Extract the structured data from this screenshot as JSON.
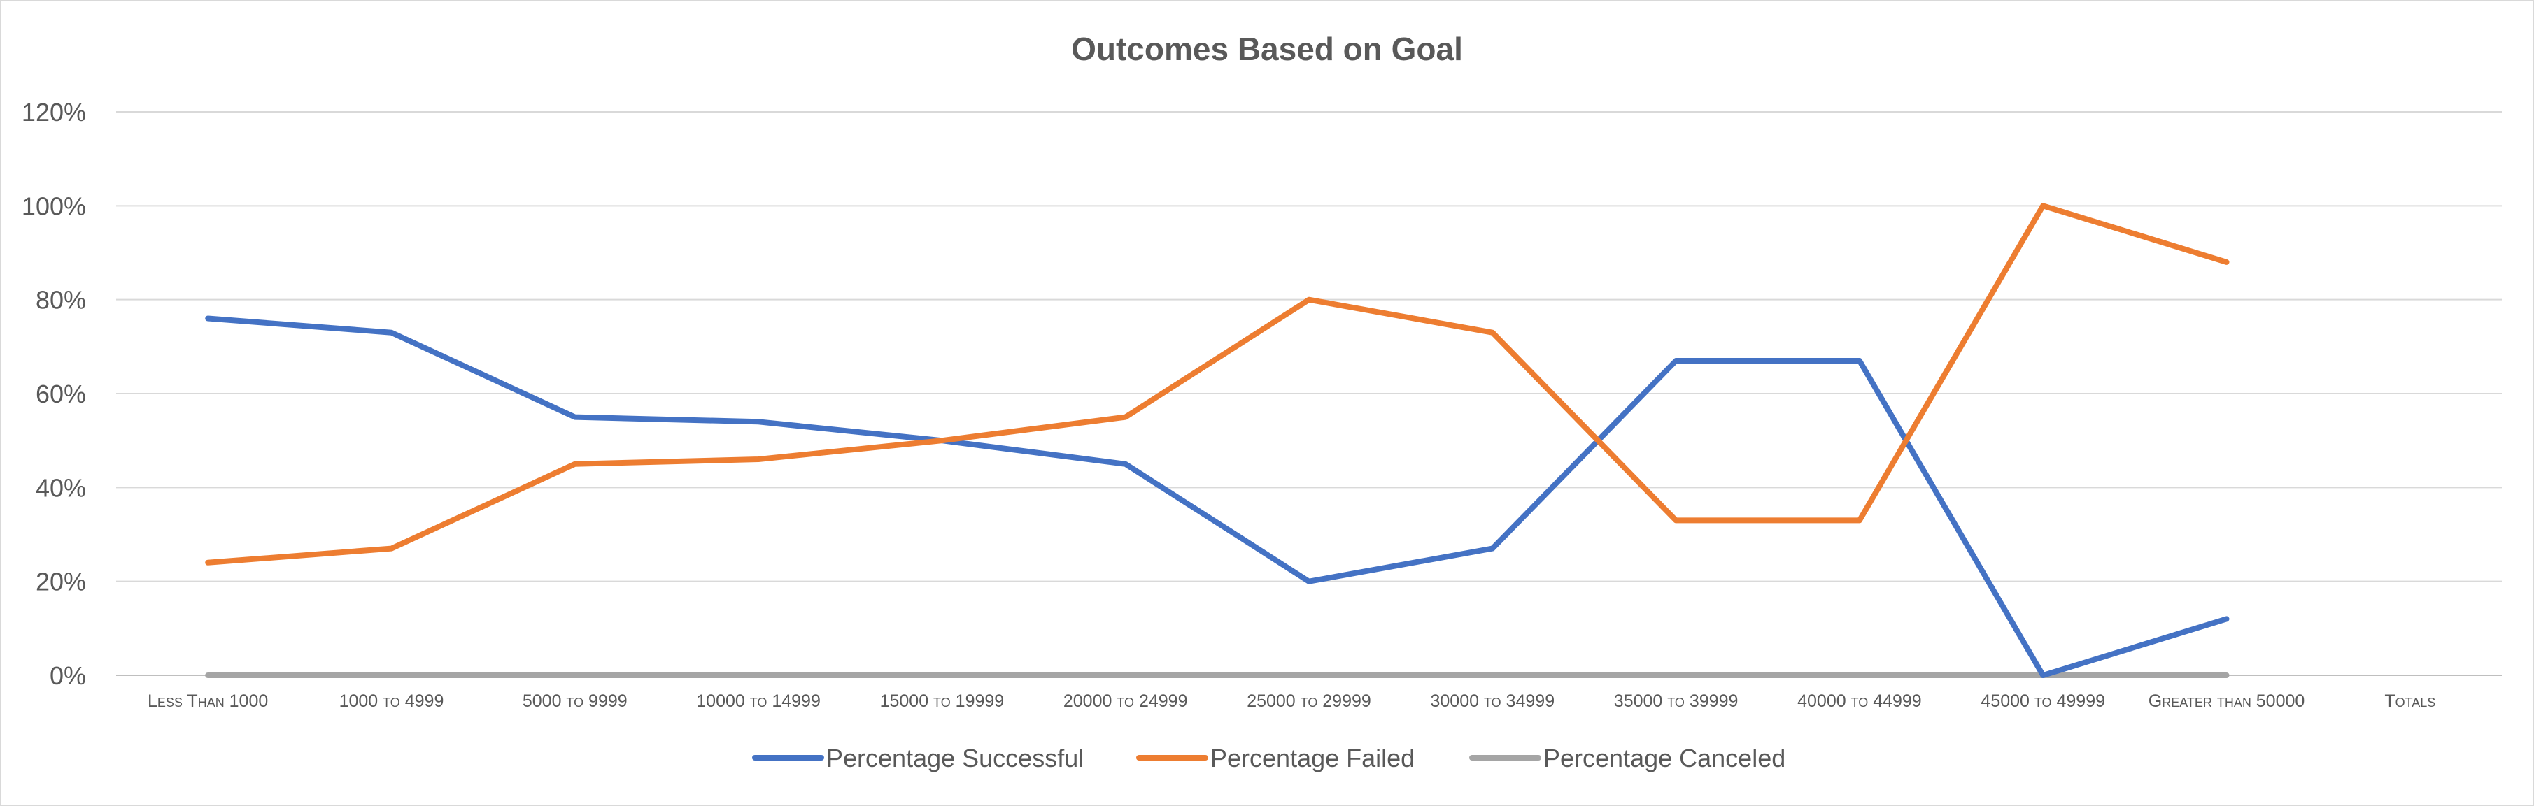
{
  "chart_data": {
    "type": "line",
    "title": "Outcomes Based on Goal",
    "xlabel": "",
    "ylabel": "",
    "ylim": [
      0,
      120
    ],
    "yticks": [
      "0%",
      "20%",
      "40%",
      "60%",
      "80%",
      "100%",
      "120%"
    ],
    "ytick_values": [
      0,
      20,
      40,
      60,
      80,
      100,
      120
    ],
    "grid": true,
    "legend_position": "bottom",
    "categories": [
      "Less Than 1000",
      "1000 to 4999",
      "5000 to 9999",
      "10000 to 14999",
      "15000 to 19999",
      "20000 to 24999",
      "25000 to 29999",
      "30000 to 34999",
      "35000 to 39999",
      "40000 to 44999",
      "45000 to 49999",
      "Greater than 50000",
      "Totals"
    ],
    "series": [
      {
        "name": "Percentage Successful",
        "color": "#4472C4",
        "values": [
          76,
          73,
          55,
          54,
          50,
          45,
          20,
          27,
          67,
          67,
          0,
          12,
          null
        ]
      },
      {
        "name": "Percentage Failed",
        "color": "#ED7D31",
        "values": [
          24,
          27,
          45,
          46,
          50,
          55,
          80,
          73,
          33,
          33,
          100,
          88,
          null
        ]
      },
      {
        "name": "Percentage Canceled",
        "color": "#A5A5A5",
        "values": [
          0,
          0,
          0,
          0,
          0,
          0,
          0,
          0,
          0,
          0,
          0,
          0,
          null
        ]
      }
    ]
  }
}
